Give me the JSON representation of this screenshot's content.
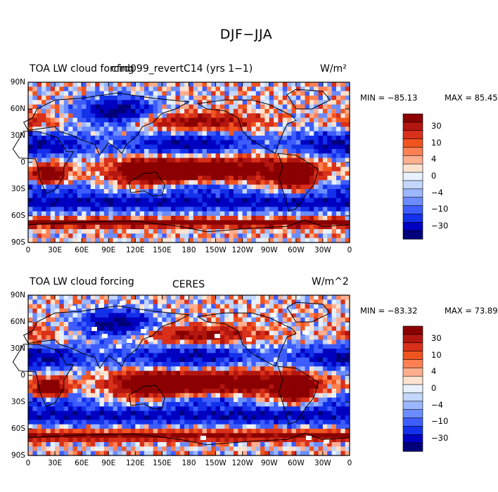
{
  "page": {
    "title": "DJF−JJA"
  },
  "chart_data": [
    {
      "type": "heatmap",
      "panel_title": "TOA LW cloud forcing",
      "overlay_title": "cfrd099_revertC14 (yrs 1−1)",
      "units": "W/m²",
      "stats": {
        "min_label": "MIN = −85.13",
        "max_label": "MAX =  85.45",
        "min": -85.13,
        "max": 85.45
      },
      "x_ticks": [
        "0",
        "30E",
        "60E",
        "90E",
        "120E",
        "150E",
        "180",
        "150W",
        "120W",
        "90W",
        "60W",
        "30W",
        "0"
      ],
      "y_ticks": [
        "90N",
        "60N",
        "30N",
        "0",
        "30S",
        "60S",
        "90S"
      ],
      "colorbar_labels": [
        "30",
        "10",
        "4",
        "0",
        "−4",
        "−10",
        "−30"
      ],
      "xlim": [
        0,
        360
      ],
      "ylim": [
        -90,
        90
      ]
    },
    {
      "type": "heatmap",
      "panel_title": "TOA LW cloud forcing",
      "overlay_title": "CERES",
      "units": "W/m^2",
      "stats": {
        "min_label": "MIN = −83.32",
        "max_label": "MAX =  73.89",
        "min": -83.32,
        "max": 73.89
      },
      "x_ticks": [
        "0",
        "30E",
        "60E",
        "90E",
        "120E",
        "150E",
        "180",
        "150W",
        "120W",
        "90W",
        "60W",
        "30W",
        "0"
      ],
      "y_ticks": [
        "90N",
        "60N",
        "30N",
        "0",
        "30S",
        "60S",
        "90S"
      ],
      "colorbar_labels": [
        "30",
        "10",
        "4",
        "0",
        "−4",
        "−10",
        "−30"
      ],
      "xlim": [
        0,
        360
      ],
      "ylim": [
        -90,
        90
      ]
    }
  ],
  "colors": {
    "palette": [
      "#8b0000",
      "#b3160e",
      "#d8301a",
      "#f0541f",
      "#ff8052",
      "#ffae8e",
      "#fde3cf",
      "#e8f2ff",
      "#c3d7ff",
      "#9cb7ff",
      "#6b8cff",
      "#3e5dff",
      "#1330ea",
      "#0000c0",
      "#00007a"
    ]
  }
}
